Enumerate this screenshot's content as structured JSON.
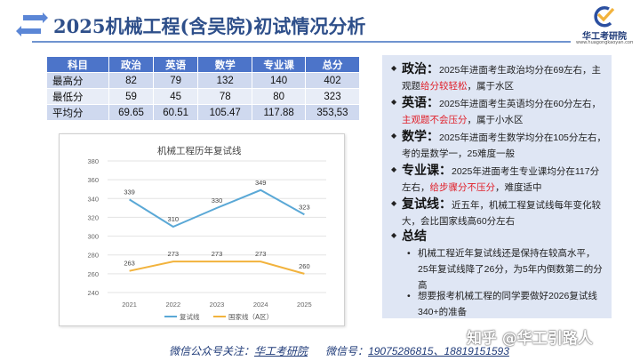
{
  "header": {
    "title": "2025机械工程(含吴院)初试情况分析",
    "logo_name": "华工考研院",
    "logo_url": "www.huagongkaoyan.com"
  },
  "table": {
    "columns": [
      "科目",
      "政治",
      "英语",
      "数学",
      "专业课",
      "总分"
    ],
    "rows": [
      [
        "最高分",
        "82",
        "79",
        "132",
        "140",
        "402"
      ],
      [
        "最低分",
        "59",
        "45",
        "78",
        "80",
        "323"
      ],
      [
        "平均分",
        "69.65",
        "60.51",
        "105.47",
        "117.88",
        "353,53"
      ]
    ]
  },
  "chart_data": {
    "type": "line",
    "title": "机械工程历年复试线",
    "x": [
      "2021",
      "2022",
      "2023",
      "2024",
      "2025"
    ],
    "ylim": [
      240,
      380
    ],
    "yticks": [
      240,
      260,
      280,
      300,
      320,
      340,
      360,
      380
    ],
    "grid": true,
    "legend": "bottom",
    "series": [
      {
        "name": "复试线",
        "values": [
          339,
          310,
          330,
          349,
          323
        ],
        "color": "#5aa8d6"
      },
      {
        "name": "国家线（A区）",
        "values": [
          263,
          273,
          273,
          273,
          260
        ],
        "color": "#f2b33d"
      }
    ]
  },
  "notes": {
    "politics": {
      "key": "政治：",
      "pre": "2025年进面考生政治均分在69左右，主观题",
      "red": "给分较轻松",
      "post": "，属于水区"
    },
    "english": {
      "key": "英语：",
      "pre": "2025年进面考生英语均分在60分左右，",
      "red": "主观题不会压分",
      "post": "，属于小水区"
    },
    "math": {
      "key": "数学：",
      "pre": "2025年进面考生数学均分在105分左右，考的是数学一，25难度一般",
      "red": "",
      "post": ""
    },
    "major": {
      "key": "专业课：",
      "pre": "2025年进面考生专业课均分在117分左右，",
      "red": "给步骤分不压分",
      "post": "，难度适中"
    },
    "retest": {
      "key": "复试线：",
      "pre": "近五年，机械工程复试线每年变化较大，会比国家线高60分左右",
      "red": "",
      "post": ""
    },
    "summary": {
      "key": "总结",
      "item1_pre": "机械工程近年复试线还是保持在",
      "item1_red": "较高水平",
      "item1_post": "，25年复试线降了26分，为5年内倒数第二的分高",
      "item2": "想要报考机械工程的同学要做好2026复试线340+的准备"
    }
  },
  "footer": {
    "wechat_label": "微信公众号关注：",
    "wechat_name": "华工考研院",
    "phone_label": "微信号：",
    "phones": "19075286815、18819151593"
  },
  "watermark": "知乎 @华工引路人"
}
